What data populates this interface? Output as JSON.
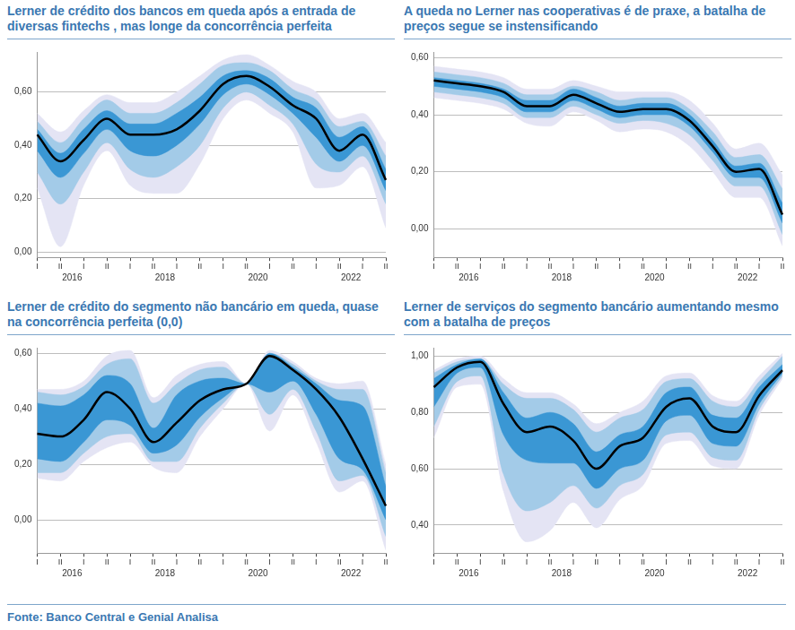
{
  "chart_data": [
    {
      "type": "line",
      "title": "Lerner de crédito dos bancos em queda após a entrada de diversas fintechs , mas  longe da concorrência perfeita",
      "categories": [
        "I",
        "II",
        "I",
        "II",
        "I",
        "II",
        "I",
        "II",
        "I",
        "II",
        "I",
        "II",
        "I",
        "II",
        "I",
        "II"
      ],
      "year_labels": [
        null,
        "2016",
        null,
        null,
        null,
        "2018",
        null,
        null,
        null,
        "2020",
        null,
        null,
        null,
        "2022",
        null,
        null
      ],
      "median": {
        "color": "#000000",
        "values": [
          0.44,
          0.34,
          0.42,
          0.5,
          0.44,
          0.44,
          0.46,
          0.53,
          0.63,
          0.66,
          0.62,
          0.55,
          0.5,
          0.38,
          0.44,
          0.27
        ]
      },
      "bands": [
        {
          "color": "#3a97d4",
          "lower": [
            0.38,
            0.28,
            0.37,
            0.46,
            0.38,
            0.36,
            0.4,
            0.48,
            0.59,
            0.63,
            0.59,
            0.52,
            0.43,
            0.34,
            0.4,
            0.23
          ],
          "upper": [
            0.46,
            0.37,
            0.46,
            0.53,
            0.48,
            0.48,
            0.52,
            0.58,
            0.66,
            0.68,
            0.65,
            0.58,
            0.54,
            0.43,
            0.47,
            0.31
          ]
        },
        {
          "color": "#a3cbe8",
          "lower": [
            0.3,
            0.18,
            0.3,
            0.41,
            0.31,
            0.28,
            0.32,
            0.4,
            0.54,
            0.6,
            0.55,
            0.48,
            0.33,
            0.3,
            0.36,
            0.18
          ],
          "upper": [
            0.49,
            0.41,
            0.5,
            0.57,
            0.52,
            0.52,
            0.56,
            0.63,
            0.7,
            0.71,
            0.68,
            0.61,
            0.57,
            0.47,
            0.49,
            0.36
          ]
        },
        {
          "color": "#e4e4f4",
          "lower": [
            0.24,
            0.02,
            0.25,
            0.38,
            0.25,
            0.22,
            0.22,
            0.33,
            0.5,
            0.57,
            0.52,
            0.45,
            0.24,
            0.25,
            0.32,
            0.09
          ],
          "upper": [
            0.52,
            0.45,
            0.53,
            0.59,
            0.56,
            0.56,
            0.6,
            0.66,
            0.72,
            0.74,
            0.7,
            0.64,
            0.6,
            0.5,
            0.52,
            0.41
          ]
        }
      ],
      "ylim": [
        -0.02,
        0.75
      ],
      "yticks": [
        {
          "value": 0,
          "label": "0,00"
        },
        {
          "value": 0.2,
          "label": "0,20"
        },
        {
          "value": 0.4,
          "label": "0,40"
        },
        {
          "value": 0.6,
          "label": "0,60"
        }
      ],
      "grid": true
    },
    {
      "type": "line",
      "title": "A queda no Lerner nas cooperativas é de praxe, a batalha de preços segue se instensificando",
      "categories": [
        "I",
        "II",
        "I",
        "II",
        "I",
        "II",
        "I",
        "II",
        "I",
        "II",
        "I",
        "II",
        "I",
        "II",
        "I",
        "II"
      ],
      "year_labels": [
        null,
        "2016",
        null,
        null,
        null,
        "2018",
        null,
        null,
        null,
        "2020",
        null,
        null,
        null,
        "2022",
        null,
        null
      ],
      "median": {
        "color": "#000000",
        "values": [
          0.52,
          0.51,
          0.5,
          0.48,
          0.43,
          0.43,
          0.47,
          0.44,
          0.41,
          0.42,
          0.42,
          0.38,
          0.29,
          0.2,
          0.21,
          0.05
        ]
      },
      "bands": [
        {
          "color": "#3a97d4",
          "lower": [
            0.5,
            0.49,
            0.48,
            0.46,
            0.41,
            0.41,
            0.45,
            0.42,
            0.39,
            0.4,
            0.4,
            0.36,
            0.27,
            0.18,
            0.18,
            0.02
          ],
          "upper": [
            0.53,
            0.52,
            0.51,
            0.49,
            0.45,
            0.45,
            0.49,
            0.46,
            0.43,
            0.44,
            0.44,
            0.4,
            0.31,
            0.22,
            0.23,
            0.09
          ]
        },
        {
          "color": "#a3cbe8",
          "lower": [
            0.48,
            0.47,
            0.46,
            0.44,
            0.39,
            0.39,
            0.43,
            0.4,
            0.37,
            0.38,
            0.37,
            0.33,
            0.24,
            0.15,
            0.15,
            -0.02
          ],
          "upper": [
            0.55,
            0.54,
            0.53,
            0.51,
            0.47,
            0.47,
            0.5,
            0.48,
            0.45,
            0.46,
            0.46,
            0.42,
            0.34,
            0.25,
            0.26,
            0.14
          ]
        },
        {
          "color": "#e4e4f4",
          "lower": [
            0.46,
            0.45,
            0.44,
            0.42,
            0.37,
            0.36,
            0.41,
            0.38,
            0.34,
            0.35,
            0.34,
            0.29,
            0.2,
            0.11,
            0.11,
            -0.06
          ],
          "upper": [
            0.57,
            0.56,
            0.55,
            0.53,
            0.49,
            0.49,
            0.52,
            0.5,
            0.48,
            0.48,
            0.48,
            0.45,
            0.37,
            0.28,
            0.3,
            0.19
          ]
        }
      ],
      "ylim": [
        -0.1,
        0.62
      ],
      "yticks": [
        {
          "value": 0,
          "label": "0,00"
        },
        {
          "value": 0.2,
          "label": "0,20"
        },
        {
          "value": 0.4,
          "label": "0,40"
        },
        {
          "value": 0.6,
          "label": "0,60"
        }
      ],
      "grid": true
    },
    {
      "type": "line",
      "title": "Lerner de crédito do segmento não bancário em queda, quase na concorrência perfeita (0,0)",
      "categories": [
        "I",
        "II",
        "I",
        "II",
        "I",
        "II",
        "I",
        "II",
        "I",
        "II",
        "I",
        "II",
        "I",
        "II",
        "I",
        "II"
      ],
      "year_labels": [
        null,
        "2016",
        null,
        null,
        null,
        "2018",
        null,
        null,
        null,
        "2020",
        null,
        null,
        null,
        "2022",
        null,
        null
      ],
      "median": {
        "color": "#000000",
        "values": [
          0.31,
          0.3,
          0.36,
          0.46,
          0.4,
          0.28,
          0.35,
          0.43,
          0.47,
          0.49,
          0.59,
          0.54,
          0.47,
          0.37,
          0.22,
          0.05
        ]
      },
      "bands": [
        {
          "color": "#3a97d4",
          "lower": [
            0.22,
            0.21,
            0.28,
            0.36,
            0.34,
            0.24,
            0.27,
            0.37,
            0.44,
            0.49,
            0.46,
            0.5,
            0.38,
            0.22,
            0.18,
            0.0
          ],
          "upper": [
            0.42,
            0.41,
            0.45,
            0.52,
            0.49,
            0.33,
            0.45,
            0.5,
            0.51,
            0.49,
            0.6,
            0.55,
            0.49,
            0.43,
            0.41,
            0.12
          ]
        },
        {
          "color": "#a3cbe8",
          "lower": [
            0.17,
            0.17,
            0.24,
            0.3,
            0.31,
            0.21,
            0.21,
            0.33,
            0.42,
            0.49,
            0.38,
            0.47,
            0.32,
            0.14,
            0.16,
            -0.06
          ],
          "upper": [
            0.46,
            0.45,
            0.48,
            0.56,
            0.58,
            0.42,
            0.49,
            0.54,
            0.55,
            0.49,
            0.6,
            0.56,
            0.5,
            0.47,
            0.47,
            0.17
          ]
        },
        {
          "color": "#e4e4f4",
          "lower": [
            0.15,
            0.14,
            0.21,
            0.26,
            0.28,
            0.19,
            0.17,
            0.3,
            0.4,
            0.49,
            0.32,
            0.45,
            0.28,
            0.1,
            0.14,
            -0.11
          ],
          "upper": [
            0.47,
            0.47,
            0.5,
            0.59,
            0.61,
            0.44,
            0.52,
            0.56,
            0.57,
            0.49,
            0.61,
            0.57,
            0.51,
            0.49,
            0.5,
            0.2
          ]
        }
      ],
      "ylim": [
        -0.12,
        0.62
      ],
      "yticks": [
        {
          "value": 0,
          "label": "0,00"
        },
        {
          "value": 0.2,
          "label": "0,20"
        },
        {
          "value": 0.4,
          "label": "0,40"
        },
        {
          "value": 0.6,
          "label": "0,60"
        }
      ],
      "grid": true
    },
    {
      "type": "line",
      "title": "Lerner de serviços do segmento bancário aumentando mesmo com a batalha de preços",
      "categories": [
        "I",
        "II",
        "I",
        "II",
        "I",
        "II",
        "I",
        "II",
        "I",
        "II",
        "I",
        "II",
        "I",
        "II",
        "I",
        "II"
      ],
      "year_labels": [
        null,
        "2016",
        null,
        null,
        null,
        "2018",
        null,
        null,
        null,
        "2020",
        null,
        null,
        null,
        "2022",
        null,
        null
      ],
      "median": {
        "color": "#000000",
        "values": [
          0.89,
          0.96,
          0.98,
          0.83,
          0.73,
          0.75,
          0.7,
          0.6,
          0.68,
          0.71,
          0.82,
          0.85,
          0.75,
          0.73,
          0.86,
          0.95
        ]
      },
      "bands": [
        {
          "color": "#3a97d4",
          "lower": [
            0.82,
            0.94,
            0.96,
            0.72,
            0.63,
            0.62,
            0.62,
            0.53,
            0.6,
            0.63,
            0.77,
            0.79,
            0.69,
            0.68,
            0.83,
            0.94
          ],
          "upper": [
            0.92,
            0.97,
            0.99,
            0.87,
            0.78,
            0.8,
            0.76,
            0.66,
            0.72,
            0.75,
            0.87,
            0.89,
            0.79,
            0.78,
            0.89,
            0.97
          ]
        },
        {
          "color": "#a3cbe8",
          "lower": [
            0.75,
            0.91,
            0.93,
            0.58,
            0.45,
            0.48,
            0.54,
            0.46,
            0.54,
            0.58,
            0.72,
            0.73,
            0.64,
            0.63,
            0.81,
            0.93
          ],
          "upper": [
            0.94,
            0.98,
            0.99,
            0.9,
            0.85,
            0.85,
            0.81,
            0.73,
            0.78,
            0.81,
            0.91,
            0.92,
            0.84,
            0.82,
            0.91,
            1.0
          ]
        },
        {
          "color": "#e4e4f4",
          "lower": [
            0.71,
            0.89,
            0.9,
            0.52,
            0.34,
            0.38,
            0.48,
            0.39,
            0.49,
            0.54,
            0.69,
            0.7,
            0.61,
            0.6,
            0.79,
            0.92
          ],
          "upper": [
            0.95,
            0.99,
            1.0,
            0.92,
            0.87,
            0.87,
            0.83,
            0.76,
            0.8,
            0.84,
            0.93,
            0.94,
            0.86,
            0.84,
            0.93,
            1.01
          ]
        }
      ],
      "ylim": [
        0.3,
        1.03
      ],
      "yticks": [
        {
          "value": 0.4,
          "label": "0,40"
        },
        {
          "value": 0.6,
          "label": "0,60"
        },
        {
          "value": 0.8,
          "label": "0,80"
        },
        {
          "value": 1,
          "label": "1,00"
        }
      ],
      "grid": true
    }
  ],
  "source": "Fonte: Banco Central e Genial Analisa"
}
